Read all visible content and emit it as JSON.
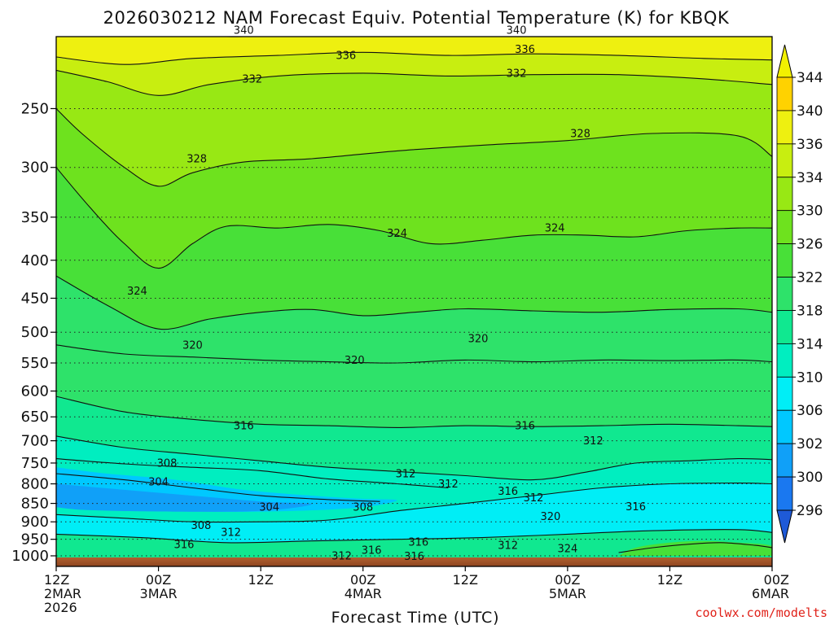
{
  "chart_data": {
    "type": "heatmap",
    "title": "2026030212 NAM Forecast Equiv. Potential Temperature (K) for KBQK",
    "xlabel": "Forecast Time (UTC)",
    "ylabel": "",
    "x_range_hours": [
      0,
      84
    ],
    "y_range_hPa": [
      1000,
      200
    ],
    "x_ticks": [
      {
        "hour": 0,
        "line1": "12Z",
        "line2": "2MAR",
        "line3": "2026"
      },
      {
        "hour": 12,
        "line1": "00Z",
        "line2": "3MAR",
        "line3": ""
      },
      {
        "hour": 24,
        "line1": "12Z",
        "line2": "",
        "line3": ""
      },
      {
        "hour": 36,
        "line1": "00Z",
        "line2": "4MAR",
        "line3": ""
      },
      {
        "hour": 48,
        "line1": "12Z",
        "line2": "",
        "line3": ""
      },
      {
        "hour": 60,
        "line1": "00Z",
        "line2": "5MAR",
        "line3": ""
      },
      {
        "hour": 72,
        "line1": "12Z",
        "line2": "",
        "line3": ""
      },
      {
        "hour": 84,
        "line1": "00Z",
        "line2": "6MAR",
        "line3": ""
      }
    ],
    "y_ticks": [
      {
        "p": 250,
        "label": "250"
      },
      {
        "p": 300,
        "label": "300"
      },
      {
        "p": 350,
        "label": "350"
      },
      {
        "p": 400,
        "label": "400"
      },
      {
        "p": 450,
        "label": "450"
      },
      {
        "p": 500,
        "label": "500"
      },
      {
        "p": 550,
        "label": "550"
      },
      {
        "p": 600,
        "label": "600"
      },
      {
        "p": 650,
        "label": "650"
      },
      {
        "p": 700,
        "label": "700"
      },
      {
        "p": 750,
        "label": "750"
      },
      {
        "p": 800,
        "label": "800"
      },
      {
        "p": 850,
        "label": "850"
      },
      {
        "p": 900,
        "label": "900"
      },
      {
        "p": 950,
        "label": "950"
      },
      {
        "p": 1000,
        "label": "1000"
      }
    ],
    "colorbar": {
      "levels": [
        296,
        300,
        302,
        306,
        310,
        314,
        318,
        322,
        326,
        330,
        334,
        336,
        340,
        344
      ],
      "colors": [
        "#1e5ad8",
        "#1a78f0",
        "#10a0f8",
        "#00c8ff",
        "#00eef6",
        "#00eec0",
        "#10e890",
        "#2ee26a",
        "#48e038",
        "#6ee21e",
        "#98e814",
        "#c8ee10",
        "#eef010",
        "#ffd200",
        "#f2f000"
      ]
    },
    "contour_lines": [
      {
        "value": 340,
        "points": [
          [
            0,
            196
          ],
          [
            10,
            198
          ],
          [
            20,
            200
          ],
          [
            30,
            199
          ],
          [
            40,
            198
          ],
          [
            50,
            199
          ],
          [
            60,
            198
          ],
          [
            70,
            199
          ],
          [
            80,
            199
          ],
          [
            84,
            200
          ]
        ]
      },
      {
        "value": 336,
        "points": [
          [
            0,
            213
          ],
          [
            8,
            218
          ],
          [
            16,
            214
          ],
          [
            26,
            212
          ],
          [
            36,
            210
          ],
          [
            46,
            212
          ],
          [
            56,
            211
          ],
          [
            66,
            212
          ],
          [
            76,
            214
          ],
          [
            84,
            215
          ]
        ]
      },
      {
        "value": 332,
        "points": [
          [
            0,
            222
          ],
          [
            6,
            230
          ],
          [
            12,
            240
          ],
          [
            18,
            232
          ],
          [
            26,
            226
          ],
          [
            36,
            224
          ],
          [
            46,
            226
          ],
          [
            56,
            225
          ],
          [
            66,
            225
          ],
          [
            76,
            228
          ],
          [
            84,
            232
          ]
        ]
      },
      {
        "value": 328,
        "points": [
          [
            0,
            250
          ],
          [
            3,
            270
          ],
          [
            8,
            300
          ],
          [
            12,
            318
          ],
          [
            16,
            305
          ],
          [
            22,
            295
          ],
          [
            30,
            292
          ],
          [
            40,
            285
          ],
          [
            50,
            280
          ],
          [
            60,
            276
          ],
          [
            70,
            270
          ],
          [
            80,
            272
          ],
          [
            84,
            290
          ]
        ]
      },
      {
        "value": 324,
        "points": [
          [
            0,
            300
          ],
          [
            4,
            340
          ],
          [
            8,
            380
          ],
          [
            12,
            410
          ],
          [
            16,
            380
          ],
          [
            20,
            360
          ],
          [
            26,
            362
          ],
          [
            32,
            358
          ],
          [
            38,
            365
          ],
          [
            44,
            380
          ],
          [
            50,
            376
          ],
          [
            56,
            370
          ],
          [
            62,
            370
          ],
          [
            68,
            372
          ],
          [
            74,
            365
          ],
          [
            80,
            362
          ],
          [
            84,
            362
          ]
        ]
      },
      {
        "value": 320,
        "points": [
          [
            0,
            420
          ],
          [
            6,
            460
          ],
          [
            12,
            495
          ],
          [
            18,
            480
          ],
          [
            24,
            470
          ],
          [
            30,
            466
          ],
          [
            36,
            475
          ],
          [
            42,
            470
          ],
          [
            48,
            465
          ],
          [
            56,
            468
          ],
          [
            64,
            470
          ],
          [
            72,
            466
          ],
          [
            80,
            465
          ],
          [
            84,
            470
          ]
        ]
      },
      {
        "value": 320,
        "points": [
          [
            0,
            520
          ],
          [
            8,
            535
          ],
          [
            16,
            540
          ],
          [
            24,
            545
          ],
          [
            32,
            548
          ],
          [
            40,
            550
          ],
          [
            48,
            545
          ],
          [
            56,
            548
          ],
          [
            64,
            545
          ],
          [
            72,
            546
          ],
          [
            80,
            545
          ],
          [
            84,
            548
          ]
        ]
      },
      {
        "value": 316,
        "points": [
          [
            0,
            610
          ],
          [
            8,
            640
          ],
          [
            16,
            655
          ],
          [
            24,
            665
          ],
          [
            32,
            668
          ],
          [
            40,
            672
          ],
          [
            48,
            668
          ],
          [
            56,
            670
          ],
          [
            64,
            668
          ],
          [
            72,
            665
          ],
          [
            80,
            668
          ],
          [
            84,
            670
          ]
        ]
      },
      {
        "value": 312,
        "points": [
          [
            0,
            690
          ],
          [
            8,
            715
          ],
          [
            16,
            730
          ],
          [
            24,
            745
          ],
          [
            32,
            760
          ],
          [
            40,
            770
          ],
          [
            48,
            780
          ],
          [
            56,
            790
          ],
          [
            62,
            772
          ],
          [
            68,
            750
          ],
          [
            74,
            745
          ],
          [
            80,
            740
          ],
          [
            84,
            742
          ]
        ]
      },
      {
        "value": 308,
        "points": [
          [
            0,
            740
          ],
          [
            8,
            752
          ],
          [
            16,
            760
          ],
          [
            24,
            768
          ],
          [
            32,
            788
          ],
          [
            40,
            800
          ],
          [
            46,
            810
          ]
        ]
      },
      {
        "value": 304,
        "points": [
          [
            0,
            775
          ],
          [
            8,
            790
          ],
          [
            16,
            810
          ],
          [
            24,
            830
          ],
          [
            32,
            840
          ],
          [
            38,
            845
          ]
        ]
      },
      {
        "value": 308,
        "points": [
          [
            0,
            880
          ],
          [
            8,
            890
          ],
          [
            16,
            900
          ],
          [
            24,
            900
          ],
          [
            32,
            895
          ],
          [
            40,
            870
          ],
          [
            48,
            850
          ],
          [
            56,
            830
          ],
          [
            64,
            810
          ],
          [
            72,
            800
          ],
          [
            80,
            798
          ],
          [
            84,
            800
          ]
        ]
      },
      {
        "value": 316,
        "points": [
          [
            0,
            935
          ],
          [
            10,
            945
          ],
          [
            20,
            960
          ],
          [
            30,
            955
          ],
          [
            40,
            950
          ],
          [
            50,
            945
          ],
          [
            60,
            935
          ],
          [
            70,
            925
          ],
          [
            80,
            922
          ],
          [
            84,
            930
          ]
        ]
      },
      {
        "value": 324,
        "points": [
          [
            66,
            990
          ],
          [
            70,
            975
          ],
          [
            74,
            965
          ],
          [
            78,
            960
          ],
          [
            82,
            968
          ],
          [
            84,
            975
          ]
        ]
      }
    ],
    "contour_labels": [
      {
        "text": "340",
        "h": 22,
        "p": 196
      },
      {
        "text": "340",
        "h": 54,
        "p": 196
      },
      {
        "text": "336",
        "h": 34,
        "p": 212
      },
      {
        "text": "336",
        "h": 55,
        "p": 208
      },
      {
        "text": "332",
        "h": 23,
        "p": 228
      },
      {
        "text": "332",
        "h": 54,
        "p": 224
      },
      {
        "text": "328",
        "h": 16.5,
        "p": 292
      },
      {
        "text": "328",
        "h": 61.5,
        "p": 270
      },
      {
        "text": "324",
        "h": 9.5,
        "p": 440
      },
      {
        "text": "324",
        "h": 40,
        "p": 368
      },
      {
        "text": "324",
        "h": 58.5,
        "p": 362
      },
      {
        "text": "320",
        "h": 16,
        "p": 520
      },
      {
        "text": "320",
        "h": 35,
        "p": 545
      },
      {
        "text": "320",
        "h": 49.5,
        "p": 510
      },
      {
        "text": "316",
        "h": 22,
        "p": 668
      },
      {
        "text": "316",
        "h": 55,
        "p": 668
      },
      {
        "text": "312",
        "h": 63,
        "p": 700
      },
      {
        "text": "308",
        "h": 13,
        "p": 750
      },
      {
        "text": "304",
        "h": 12,
        "p": 795
      },
      {
        "text": "312",
        "h": 41,
        "p": 775
      },
      {
        "text": "312",
        "h": 46,
        "p": 800
      },
      {
        "text": "304",
        "h": 25,
        "p": 860
      },
      {
        "text": "308",
        "h": 36,
        "p": 860
      },
      {
        "text": "316",
        "h": 53,
        "p": 818
      },
      {
        "text": "312",
        "h": 56,
        "p": 835
      },
      {
        "text": "316",
        "h": 68,
        "p": 858
      },
      {
        "text": "308",
        "h": 17,
        "p": 910
      },
      {
        "text": "312",
        "h": 20.5,
        "p": 930
      },
      {
        "text": "320",
        "h": 58,
        "p": 885
      },
      {
        "text": "316",
        "h": 15,
        "p": 965
      },
      {
        "text": "316",
        "h": 37,
        "p": 983
      },
      {
        "text": "316",
        "h": 42.5,
        "p": 958
      },
      {
        "text": "312",
        "h": 53,
        "p": 968
      },
      {
        "text": "324",
        "h": 60,
        "p": 978
      },
      {
        "text": "312",
        "h": 33.5,
        "p": 1000
      },
      {
        "text": "316",
        "h": 42,
        "p": 1001
      }
    ]
  },
  "credit": "coolwx.com/modelts",
  "colors": {
    "ground": "#a9562c",
    "frame": "#000000"
  }
}
